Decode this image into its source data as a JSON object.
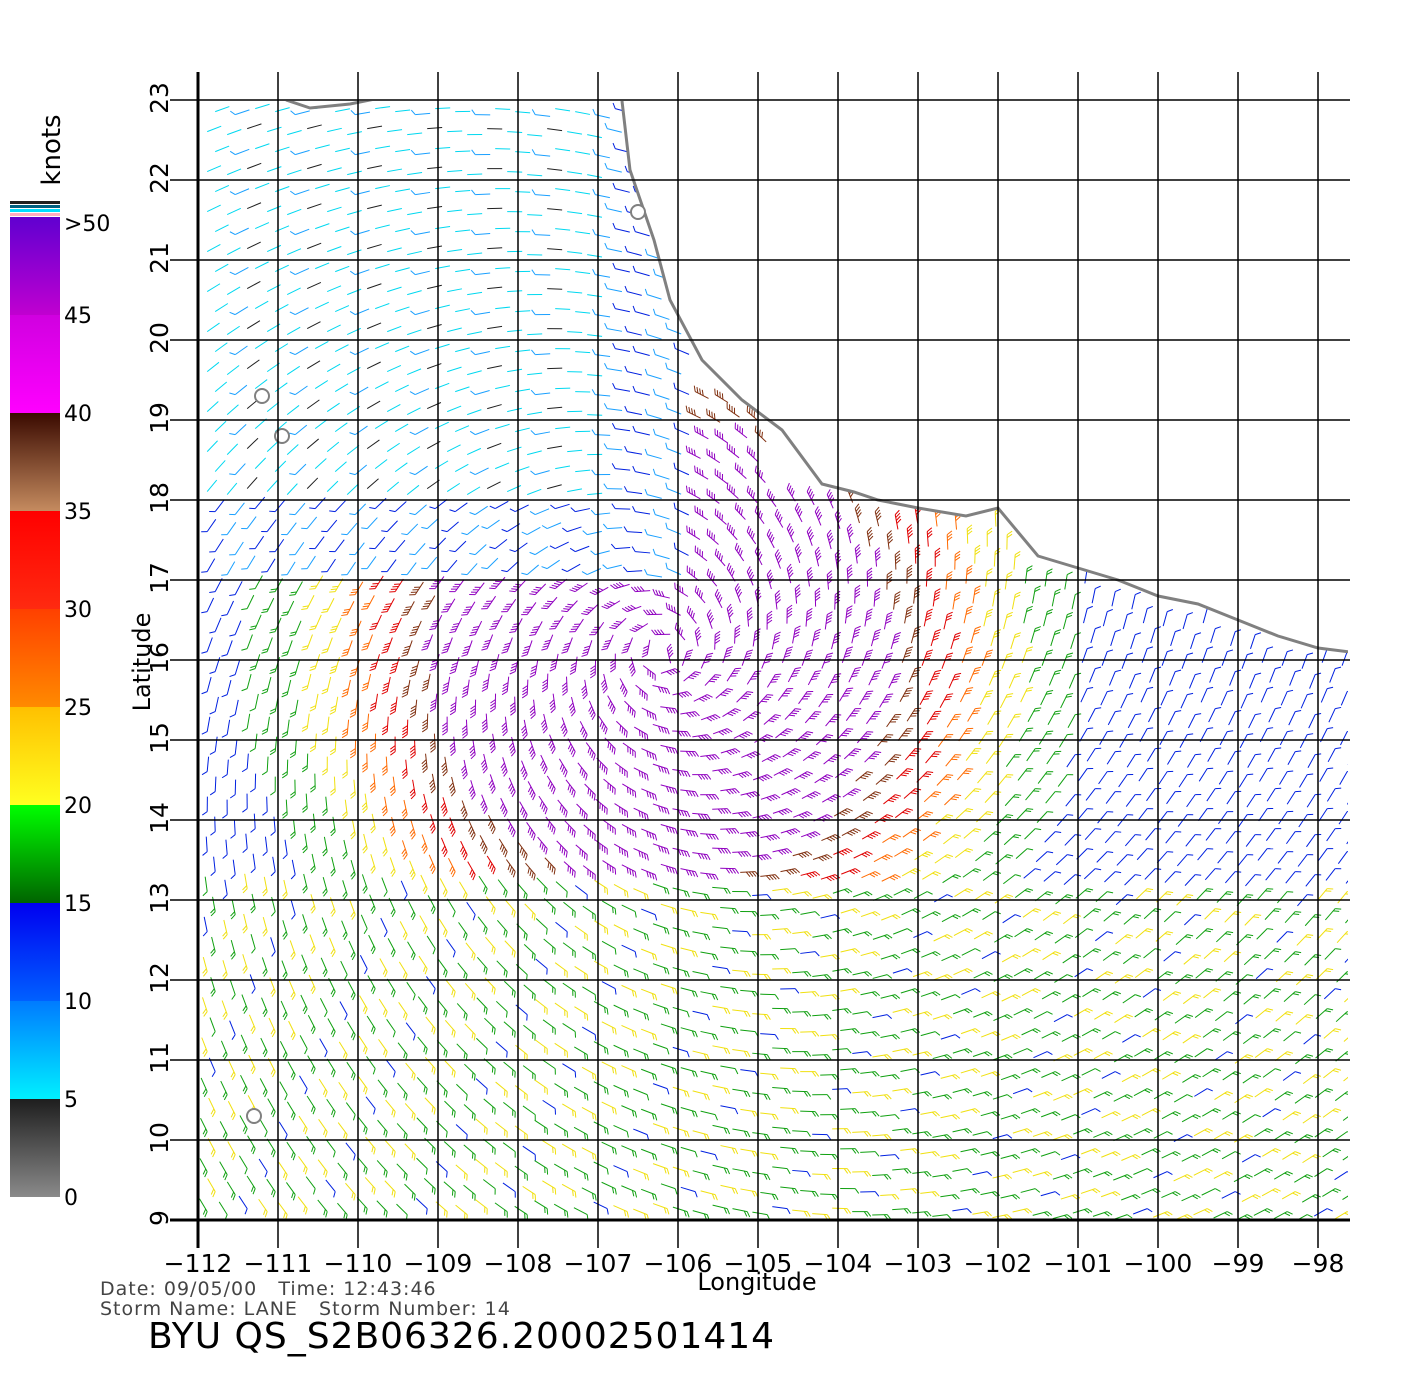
{
  "legend": {
    "units_label": "knots",
    "tick_labels": [
      ">50",
      "45",
      "40",
      "35",
      "30",
      "25",
      "20",
      "15",
      "10",
      "5",
      "0"
    ],
    "bands": [
      {
        "from": 0,
        "to": 5,
        "colors": [
          "#8a8a8a",
          "#1e1e1e"
        ]
      },
      {
        "from": 5,
        "to": 10,
        "colors": [
          "#00f0ff",
          "#007bff"
        ]
      },
      {
        "from": 10,
        "to": 15,
        "colors": [
          "#0060ff",
          "#0000f0"
        ]
      },
      {
        "from": 15,
        "to": 20,
        "colors": [
          "#006400",
          "#00ff00"
        ]
      },
      {
        "from": 20,
        "to": 25,
        "colors": [
          "#ffff20",
          "#ffc000"
        ]
      },
      {
        "from": 25,
        "to": 30,
        "colors": [
          "#ff8a00",
          "#ff4000"
        ]
      },
      {
        "from": 30,
        "to": 35,
        "colors": [
          "#ff2a10",
          "#ff0000"
        ]
      },
      {
        "from": 35,
        "to": 40,
        "colors": [
          "#c58b5f",
          "#3a0a00"
        ]
      },
      {
        "from": 40,
        "to": 45,
        "colors": [
          "#ff00ff",
          "#d000e0"
        ]
      },
      {
        "from": 45,
        "to": 50,
        "colors": [
          "#c000d0",
          "#6000d0"
        ]
      }
    ],
    "top_stripe_colors": [
      "#ffb0c0",
      "#00e0ff",
      "#006080",
      "#202020"
    ]
  },
  "map": {
    "x_axis_label": "Longitude",
    "y_axis_label": "Latitude",
    "lon_ticks": [
      -112,
      -111,
      -110,
      -109,
      -108,
      -107,
      -106,
      -105,
      -104,
      -103,
      -102,
      -101,
      -100,
      -99,
      -98
    ],
    "lon_tick_labels": [
      "−112",
      "−111",
      "−110",
      "−109",
      "−108",
      "−107",
      "−106",
      "−105",
      "−104",
      "−103",
      "−102",
      "−101",
      "−100",
      "−99",
      "−98"
    ],
    "lat_ticks": [
      9,
      10,
      11,
      12,
      13,
      14,
      15,
      16,
      17,
      18,
      19,
      20,
      21,
      22,
      23
    ],
    "lat_tick_labels": [
      "9",
      "10",
      "11",
      "12",
      "13",
      "14",
      "15",
      "16",
      "17",
      "18",
      "19",
      "20",
      "21",
      "22",
      "23"
    ],
    "lon_range": [
      -112,
      -97.6
    ],
    "lat_range": [
      9,
      23
    ],
    "grid": true,
    "land_color": "#ffffff",
    "coastline_color": "#808080",
    "storm_center_lonlat": [
      -106.2,
      16.1
    ],
    "coastline_lonlat": [
      [
        -104.2,
        18.2
      ],
      [
        -103.8,
        18.1
      ],
      [
        -103.5,
        18.0
      ],
      [
        -103.0,
        17.9
      ],
      [
        -102.4,
        17.8
      ],
      [
        -102.0,
        17.9
      ],
      [
        -101.5,
        17.3
      ],
      [
        -101.0,
        17.15
      ],
      [
        -100.5,
        17.0
      ],
      [
        -100.0,
        16.8
      ],
      [
        -99.5,
        16.7
      ],
      [
        -99.0,
        16.5
      ],
      [
        -98.5,
        16.3
      ],
      [
        -98.0,
        16.15
      ],
      [
        -97.6,
        16.1
      ]
    ],
    "baja_tip_lonlat": [
      [
        -110.9,
        23.0
      ],
      [
        -110.6,
        22.9
      ],
      [
        -110.1,
        22.95
      ],
      [
        -109.6,
        23.05
      ]
    ],
    "islands_lonlat": [
      [
        -110.95,
        18.8
      ],
      [
        -111.2,
        19.3
      ],
      [
        -106.5,
        21.6
      ],
      [
        -111.3,
        10.3
      ]
    ]
  },
  "info": {
    "date_label": "Date:",
    "date_value": "09/05/00",
    "time_label": "Time:",
    "time_value": "12:43:46",
    "storm_name_label": "Storm Name:",
    "storm_name_value": "LANE",
    "storm_number_label": "Storm Number:",
    "storm_number_value": "14",
    "product_id": "BYU QS_S2B06326.20002501414"
  }
}
